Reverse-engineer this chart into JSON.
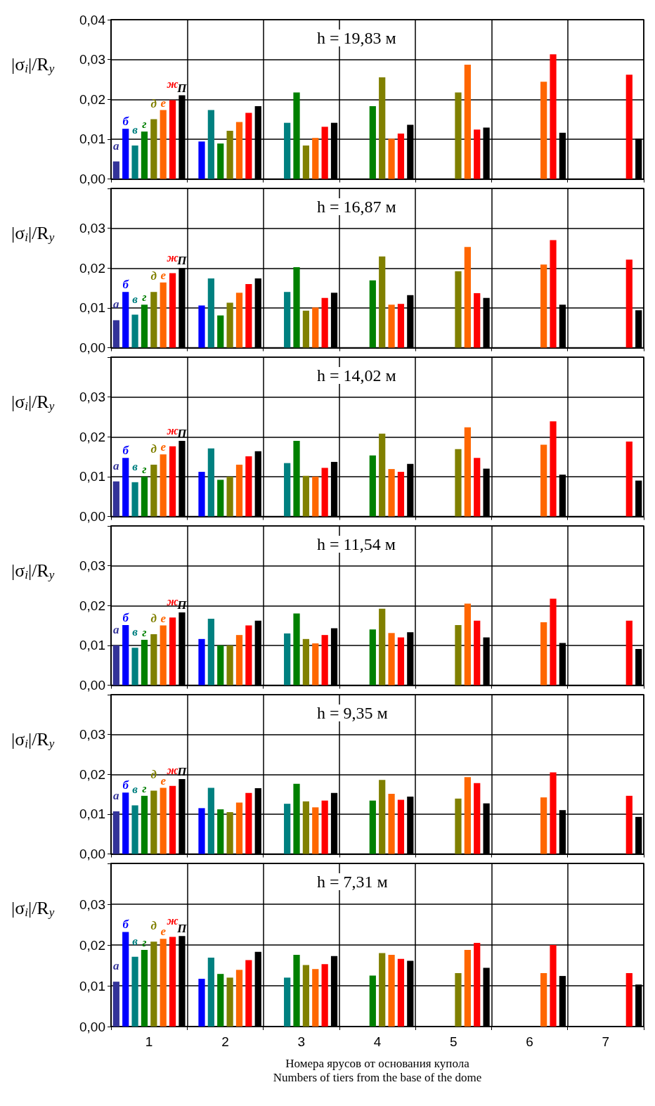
{
  "chart_data": [
    {
      "type": "bar",
      "title": "h = 19,83 м",
      "ylabel": "|σ$_{i}$|/R$_{y}$",
      "categories": [
        "1",
        "2",
        "3",
        "4",
        "5",
        "6",
        "7"
      ],
      "ylim": [
        0,
        0.04
      ],
      "yticks": [
        {
          "value": 0,
          "label": "0,00"
        },
        {
          "value": 0.01,
          "label": "0,01"
        },
        {
          "value": 0.02,
          "label": "0,02"
        },
        {
          "value": 0.03,
          "label": "0,03"
        },
        {
          "value": 0.04,
          "label": "0,04"
        }
      ],
      "grid": true,
      "legend": false,
      "tick_labels": "y",
      "series": [
        {
          "name": "а",
          "color": "#333399",
          "values": [
            0.0044,
            null,
            null,
            null,
            null,
            null,
            null
          ]
        },
        {
          "name": "б",
          "color": "#0000ff",
          "values": [
            0.0126,
            0.0094,
            null,
            null,
            null,
            null,
            null
          ]
        },
        {
          "name": "в",
          "color": "#008080",
          "values": [
            0.0084,
            0.0173,
            0.0141,
            null,
            null,
            null,
            null
          ]
        },
        {
          "name": "г",
          "color": "#008000",
          "values": [
            0.0119,
            0.0089,
            0.0217,
            0.0183,
            null,
            null,
            null
          ]
        },
        {
          "name": "д",
          "color": "#808000",
          "values": [
            0.015,
            0.0121,
            0.0084,
            0.0255,
            0.0217,
            null,
            null
          ]
        },
        {
          "name": "е",
          "color": "#ff6600",
          "values": [
            0.0173,
            0.0143,
            0.0103,
            0.0101,
            0.0287,
            0.0244,
            null
          ]
        },
        {
          "name": "ж",
          "color": "#ff0000",
          "values": [
            0.0198,
            0.0166,
            0.0131,
            0.0114,
            0.0124,
            0.0313,
            0.0262
          ]
        },
        {
          "name": "П",
          "color": "#000000",
          "values": [
            0.021,
            0.0183,
            0.0141,
            0.0136,
            0.0129,
            0.0116,
            0.0101
          ]
        }
      ]
    },
    {
      "type": "bar",
      "title": "h = 16,87 м",
      "ylabel": "|σ$_{i}$|/R$_{y}$",
      "categories": [
        "1",
        "2",
        "3",
        "4",
        "5",
        "6",
        "7"
      ],
      "ylim": [
        0,
        0.04
      ],
      "yticks": [
        {
          "value": 0,
          "label": "0,00"
        },
        {
          "value": 0.01,
          "label": "0,01"
        },
        {
          "value": 0.02,
          "label": "0,02"
        },
        {
          "value": 0.03,
          "label": "0,03"
        },
        {
          "value": 0.04,
          "label": null
        }
      ],
      "grid": true,
      "legend": false,
      "tick_labels": "y",
      "series": [
        {
          "name": "а",
          "color": "#333399",
          "values": [
            0.0069,
            null,
            null,
            null,
            null,
            null,
            null
          ]
        },
        {
          "name": "б",
          "color": "#0000ff",
          "values": [
            0.014,
            0.0106,
            null,
            null,
            null,
            null,
            null
          ]
        },
        {
          "name": "в",
          "color": "#008080",
          "values": [
            0.0083,
            0.0174,
            0.014,
            null,
            null,
            null,
            null
          ]
        },
        {
          "name": "г",
          "color": "#008000",
          "values": [
            0.0108,
            0.0081,
            0.0202,
            0.0169,
            null,
            null,
            null
          ]
        },
        {
          "name": "д",
          "color": "#808000",
          "values": [
            0.014,
            0.0113,
            0.0093,
            0.0229,
            0.0192,
            null,
            null
          ]
        },
        {
          "name": "е",
          "color": "#ff6600",
          "values": [
            0.0164,
            0.0138,
            0.0101,
            0.0108,
            0.0253,
            0.0209,
            null
          ]
        },
        {
          "name": "ж",
          "color": "#ff0000",
          "values": [
            0.0187,
            0.016,
            0.0125,
            0.011,
            0.0137,
            0.027,
            0.0221
          ]
        },
        {
          "name": "П",
          "color": "#000000",
          "values": [
            0.02,
            0.0174,
            0.0138,
            0.0132,
            0.0125,
            0.0108,
            0.0094
          ]
        }
      ]
    },
    {
      "type": "bar",
      "title": "h = 14,02 м",
      "ylabel": "|σ$_{i}$|/R$_{y}$",
      "categories": [
        "1",
        "2",
        "3",
        "4",
        "5",
        "6",
        "7"
      ],
      "ylim": [
        0,
        0.04
      ],
      "yticks": [
        {
          "value": 0,
          "label": "0,00"
        },
        {
          "value": 0.01,
          "label": "0,01"
        },
        {
          "value": 0.02,
          "label": "0,02"
        },
        {
          "value": 0.03,
          "label": "0,03"
        },
        {
          "value": 0.04,
          "label": null
        }
      ],
      "grid": true,
      "legend": false,
      "tick_labels": "y",
      "series": [
        {
          "name": "а",
          "color": "#333399",
          "values": [
            0.0088,
            null,
            null,
            null,
            null,
            null,
            null
          ]
        },
        {
          "name": "б",
          "color": "#0000ff",
          "values": [
            0.0147,
            0.0112,
            null,
            null,
            null,
            null,
            null
          ]
        },
        {
          "name": "в",
          "color": "#008080",
          "values": [
            0.0086,
            0.0171,
            0.0134,
            null,
            null,
            null,
            null
          ]
        },
        {
          "name": "г",
          "color": "#008000",
          "values": [
            0.01,
            0.0092,
            0.019,
            0.0153,
            null,
            null,
            null
          ]
        },
        {
          "name": "д",
          "color": "#808000",
          "values": [
            0.013,
            0.01,
            0.0102,
            0.0208,
            0.0169,
            null,
            null
          ]
        },
        {
          "name": "е",
          "color": "#ff6600",
          "values": [
            0.0156,
            0.013,
            0.01,
            0.0119,
            0.0224,
            0.018,
            null
          ]
        },
        {
          "name": "ж",
          "color": "#ff0000",
          "values": [
            0.0176,
            0.0151,
            0.0122,
            0.0112,
            0.0147,
            0.0239,
            0.0188
          ]
        },
        {
          "name": "П",
          "color": "#000000",
          "values": [
            0.019,
            0.0164,
            0.0137,
            0.0132,
            0.012,
            0.0105,
            0.009
          ]
        }
      ]
    },
    {
      "type": "bar",
      "title": "h = 11,54 м",
      "ylabel": "|σ$_{i}$|/R$_{y}$",
      "categories": [
        "1",
        "2",
        "3",
        "4",
        "5",
        "6",
        "7"
      ],
      "ylim": [
        0,
        0.04
      ],
      "yticks": [
        {
          "value": 0,
          "label": "0,00"
        },
        {
          "value": 0.01,
          "label": "0,01"
        },
        {
          "value": 0.02,
          "label": "0,02"
        },
        {
          "value": 0.03,
          "label": "0,03"
        },
        {
          "value": 0.04,
          "label": null
        }
      ],
      "grid": true,
      "legend": false,
      "tick_labels": "y",
      "series": [
        {
          "name": "а",
          "color": "#333399",
          "values": [
            0.01,
            null,
            null,
            null,
            null,
            null,
            null
          ]
        },
        {
          "name": "б",
          "color": "#0000ff",
          "values": [
            0.0151,
            0.0116,
            null,
            null,
            null,
            null,
            null
          ]
        },
        {
          "name": "в",
          "color": "#008080",
          "values": [
            0.0094,
            0.0167,
            0.013,
            null,
            null,
            null,
            null
          ]
        },
        {
          "name": "г",
          "color": "#008000",
          "values": [
            0.0114,
            0.01,
            0.018,
            0.014,
            null,
            null,
            null
          ]
        },
        {
          "name": "д",
          "color": "#808000",
          "values": [
            0.0128,
            0.01,
            0.0116,
            0.0192,
            0.0151,
            null,
            null
          ]
        },
        {
          "name": "е",
          "color": "#ff6600",
          "values": [
            0.015,
            0.0126,
            0.0105,
            0.0131,
            0.0205,
            0.0158,
            null
          ]
        },
        {
          "name": "ж",
          "color": "#ff0000",
          "values": [
            0.017,
            0.015,
            0.0126,
            0.012,
            0.0162,
            0.0217,
            0.0162
          ]
        },
        {
          "name": "П",
          "color": "#000000",
          "values": [
            0.0183,
            0.0162,
            0.0143,
            0.0133,
            0.012,
            0.0106,
            0.0091
          ]
        }
      ]
    },
    {
      "type": "bar",
      "title": "h = 9,35 м",
      "ylabel": "|σ$_{i}$|/R$_{y}$",
      "categories": [
        "1",
        "2",
        "3",
        "4",
        "5",
        "6",
        "7"
      ],
      "ylim": [
        0,
        0.04
      ],
      "yticks": [
        {
          "value": 0,
          "label": "0,00"
        },
        {
          "value": 0.01,
          "label": "0,01"
        },
        {
          "value": 0.02,
          "label": "0,02"
        },
        {
          "value": 0.03,
          "label": "0,03"
        },
        {
          "value": 0.04,
          "label": null
        }
      ],
      "grid": true,
      "legend": false,
      "tick_labels": "y",
      "series": [
        {
          "name": "а",
          "color": "#333399",
          "values": [
            0.0107,
            null,
            null,
            null,
            null,
            null,
            null
          ]
        },
        {
          "name": "б",
          "color": "#0000ff",
          "values": [
            0.0154,
            0.0115,
            null,
            null,
            null,
            null,
            null
          ]
        },
        {
          "name": "в",
          "color": "#008080",
          "values": [
            0.0122,
            0.0166,
            0.0126,
            null,
            null,
            null,
            null
          ]
        },
        {
          "name": "г",
          "color": "#008000",
          "values": [
            0.0146,
            0.0112,
            0.0176,
            0.0134,
            null,
            null,
            null
          ]
        },
        {
          "name": "д",
          "color": "#808000",
          "values": [
            0.0159,
            0.0105,
            0.0132,
            0.0186,
            0.0139,
            null,
            null
          ]
        },
        {
          "name": "е",
          "color": "#ff6600",
          "values": [
            0.0166,
            0.0129,
            0.0117,
            0.0151,
            0.0193,
            0.0142,
            null
          ]
        },
        {
          "name": "ж",
          "color": "#ff0000",
          "values": [
            0.0171,
            0.0153,
            0.0134,
            0.0136,
            0.0178,
            0.0205,
            0.0146
          ]
        },
        {
          "name": "П",
          "color": "#000000",
          "values": [
            0.0188,
            0.0165,
            0.0153,
            0.0144,
            0.0127,
            0.011,
            0.0093
          ]
        }
      ]
    },
    {
      "type": "bar",
      "title": "h = 7,31 м",
      "ylabel": "|σ$_{i}$|/R$_{y}$",
      "xlabel": "Номера ярусов от основания купола\nNumbers of tiers from the base of the dome",
      "categories": [
        "1",
        "2",
        "3",
        "4",
        "5",
        "6",
        "7"
      ],
      "ylim": [
        0,
        0.04
      ],
      "yticks": [
        {
          "value": 0,
          "label": "0,00"
        },
        {
          "value": 0.01,
          "label": "0,01"
        },
        {
          "value": 0.02,
          "label": "0,02"
        },
        {
          "value": 0.03,
          "label": "0,03"
        },
        {
          "value": 0.04,
          "label": null
        }
      ],
      "grid": true,
      "legend": false,
      "series": [
        {
          "name": "а",
          "color": "#333399",
          "values": [
            0.011,
            null,
            null,
            null,
            null,
            null,
            null
          ]
        },
        {
          "name": "б",
          "color": "#0000ff",
          "values": [
            0.0232,
            0.0117,
            null,
            null,
            null,
            null,
            null
          ]
        },
        {
          "name": "в",
          "color": "#008080",
          "values": [
            0.0171,
            0.0169,
            0.012,
            null,
            null,
            null,
            null
          ]
        },
        {
          "name": "г",
          "color": "#008000",
          "values": [
            0.0188,
            0.0129,
            0.0176,
            0.0125,
            null,
            null,
            null
          ]
        },
        {
          "name": "д",
          "color": "#808000",
          "values": [
            0.0208,
            0.012,
            0.0151,
            0.018,
            0.0131,
            null,
            null
          ]
        },
        {
          "name": "е",
          "color": "#ff6600",
          "values": [
            0.0215,
            0.0139,
            0.0141,
            0.0176,
            0.0188,
            0.0131,
            null
          ]
        },
        {
          "name": "ж",
          "color": "#ff0000",
          "values": [
            0.022,
            0.0163,
            0.0153,
            0.0166,
            0.0205,
            0.02,
            0.0131
          ]
        },
        {
          "name": "П",
          "color": "#000000",
          "values": [
            0.0222,
            0.0183,
            0.0173,
            0.0161,
            0.0144,
            0.0124,
            0.0103
          ]
        }
      ]
    }
  ]
}
